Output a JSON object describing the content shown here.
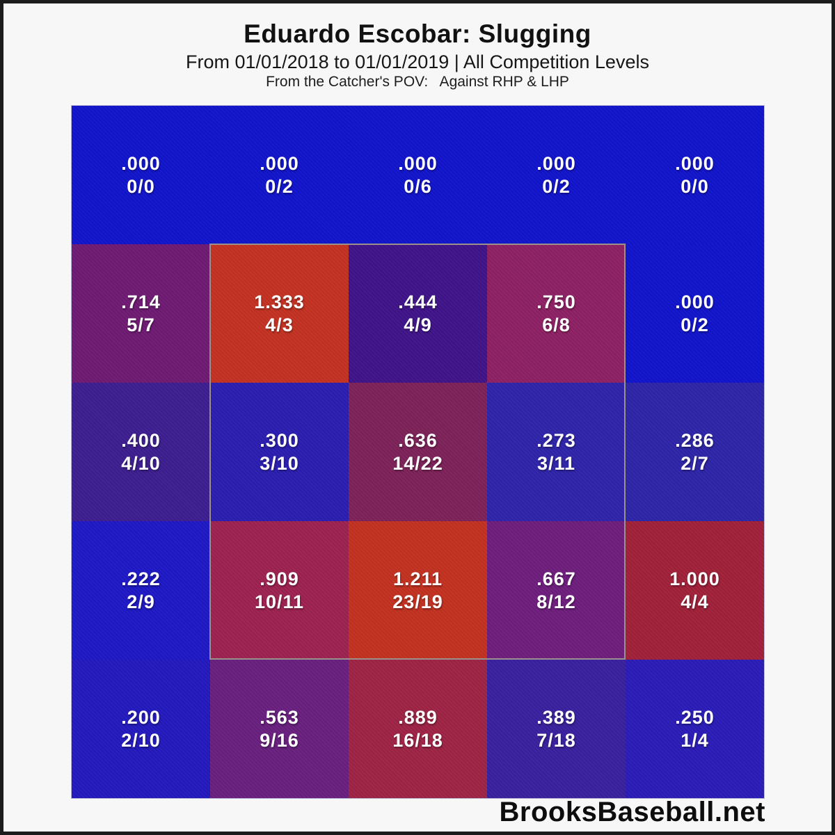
{
  "header": {
    "title": "Eduardo Escobar: Slugging",
    "subtitle": "From 01/01/2018 to 01/01/2019 | All Competition Levels",
    "pov_line": "From the Catcher's POV:   Against RHP & LHP"
  },
  "footer": {
    "brand": "BrooksBaseball.net"
  },
  "chart_data": {
    "type": "heatmap",
    "title": "Eduardo Escobar: Slugging",
    "date_range": "From 01/01/2018 to 01/01/2019",
    "competition": "All Competition Levels",
    "perspective": "From the Catcher's POV",
    "split": "Against RHP & LHP",
    "metric": "Slugging percentage (hits-for-bases / at-bats) per pitch-location zone",
    "grid": {
      "rows": 5,
      "cols": 5
    },
    "strike_zone": {
      "description": "gray outline around inner 3x3 zones (rows 2-4, cols 2-4)",
      "row_start": 2,
      "row_end": 4,
      "col_start": 2,
      "col_end": 4,
      "border_color": "#99918a"
    },
    "legend_colors": {
      "cold_low_slg": "#1114cb",
      "mid_slg": "#6e1a73",
      "hot_high_slg": "#c33122"
    },
    "cells": [
      [
        {
          "slg": ".000",
          "count": "0/0",
          "color": "#1114cb"
        },
        {
          "slg": ".000",
          "count": "0/2",
          "color": "#1114cb"
        },
        {
          "slg": ".000",
          "count": "0/6",
          "color": "#1114cb"
        },
        {
          "slg": ".000",
          "count": "0/2",
          "color": "#1114cb"
        },
        {
          "slg": ".000",
          "count": "0/0",
          "color": "#1114cb"
        }
      ],
      [
        {
          "slg": ".714",
          "count": "5/7",
          "color": "#6e1a73"
        },
        {
          "slg": "1.333",
          "count": "4/3",
          "color": "#c33122"
        },
        {
          "slg": ".444",
          "count": "4/9",
          "color": "#3f1388"
        },
        {
          "slg": ".750",
          "count": "6/8",
          "color": "#8d2063"
        },
        {
          "slg": ".000",
          "count": "0/2",
          "color": "#1114cb"
        }
      ],
      [
        {
          "slg": ".400",
          "count": "4/10",
          "color": "#3c1d8e"
        },
        {
          "slg": ".300",
          "count": "3/10",
          "color": "#2a1db0"
        },
        {
          "slg": ".636",
          "count": "14/22",
          "color": "#7d2159"
        },
        {
          "slg": ".273",
          "count": "3/11",
          "color": "#2e23a9"
        },
        {
          "slg": ".286",
          "count": "2/7",
          "color": "#2d24a7"
        }
      ],
      [
        {
          "slg": ".222",
          "count": "2/9",
          "color": "#1d18c4"
        },
        {
          "slg": ".909",
          "count": "10/11",
          "color": "#9d2150"
        },
        {
          "slg": "1.211",
          "count": "23/19",
          "color": "#c23120"
        },
        {
          "slg": ".667",
          "count": "8/12",
          "color": "#6e1d7d"
        },
        {
          "slg": "1.000",
          "count": "4/4",
          "color": "#a02038"
        }
      ],
      [
        {
          "slg": ".200",
          "count": "2/10",
          "color": "#2319bd"
        },
        {
          "slg": ".563",
          "count": "9/16",
          "color": "#681f7e"
        },
        {
          "slg": ".889",
          "count": "16/18",
          "color": "#9e2345"
        },
        {
          "slg": ".389",
          "count": "7/18",
          "color": "#39209e"
        },
        {
          "slg": ".250",
          "count": "1/4",
          "color": "#2a1cb8"
        }
      ]
    ]
  }
}
